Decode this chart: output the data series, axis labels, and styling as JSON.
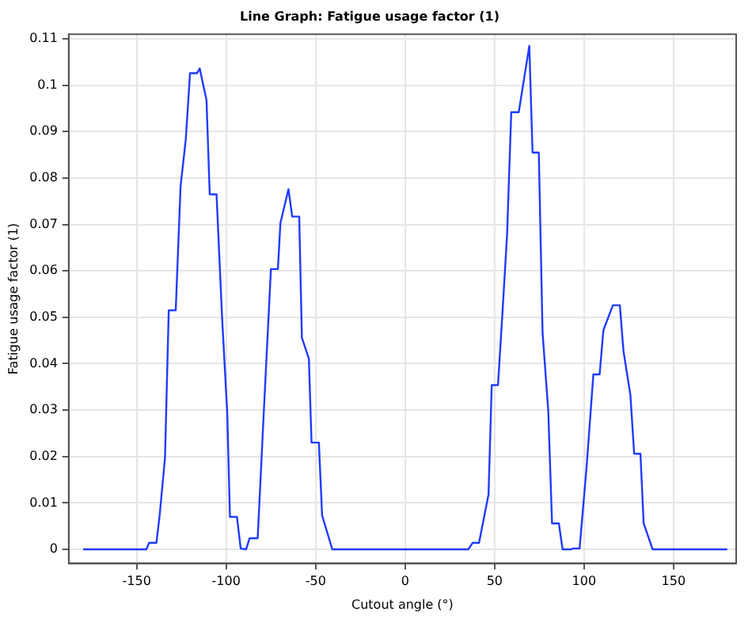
{
  "chart_data": {
    "type": "line",
    "title": "Line Graph: Fatigue usage factor (1)",
    "xlabel": "Cutout angle (°)",
    "ylabel": "Fatigue usage factor (1)",
    "x": [
      -180,
      -144.6,
      -143.1,
      -139,
      -137.2,
      -134.2,
      -132.1,
      -128.2,
      -125.5,
      -122.6,
      -120.2,
      -116.3,
      -114.8,
      -111,
      -109.2,
      -105.4,
      -102.3,
      -99.4,
      -97.9,
      -94,
      -91.9,
      -88.9,
      -86.9,
      -82.4,
      -79.1,
      -75,
      -71.1,
      -69.7,
      -65.2,
      -63.1,
      -59.2,
      -57.7,
      -53.8,
      -52.3,
      -48.2,
      -46.4,
      -40.7,
      35.3,
      37.7,
      41.3,
      46.6,
      48.4,
      51.9,
      54.6,
      57,
      59.3,
      63.5,
      69.4,
      71.2,
      74.7,
      76.8,
      80,
      82.1,
      85.9,
      88,
      92.5,
      93.9,
      97.5,
      101.4,
      105.2,
      108.7,
      110.8,
      116.1,
      120,
      122,
      125.9,
      128,
      131.5,
      133.3,
      138.3,
      180
    ],
    "series": [
      {
        "color": "#1f3cff",
        "values": [
          0,
          0,
          0.0014,
          0.0014,
          0.0073,
          0.0197,
          0.0515,
          0.0515,
          0.0782,
          0.0883,
          0.1026,
          0.1026,
          0.1036,
          0.0968,
          0.0765,
          0.0765,
          0.05,
          0.0293,
          0.007,
          0.007,
          0.0002,
          0,
          0.0024,
          0.0024,
          0.0287,
          0.0604,
          0.0604,
          0.0703,
          0.0776,
          0.0717,
          0.0717,
          0.0456,
          0.0411,
          0.023,
          0.023,
          0.0073,
          0,
          0,
          0.0014,
          0.0014,
          0.0118,
          0.0354,
          0.0354,
          0.0523,
          0.068,
          0.0942,
          0.0942,
          0.1085,
          0.0855,
          0.0855,
          0.0467,
          0.0298,
          0.0056,
          0.0056,
          0,
          0,
          0.0002,
          0.0002,
          0.0177,
          0.0377,
          0.0377,
          0.0472,
          0.0526,
          0.0526,
          0.0428,
          0.0332,
          0.0206,
          0.0206,
          0.0056,
          0,
          0
        ]
      }
    ],
    "xlim": [
      -188,
      185
    ],
    "ylim": [
      -0.003,
      0.111
    ],
    "xticks": [
      -150,
      -100,
      -50,
      0,
      50,
      100,
      150
    ],
    "yticks": [
      0,
      0.01,
      0.02,
      0.03,
      0.04,
      0.05,
      0.06,
      0.07,
      0.08,
      0.09,
      0.1,
      0.11
    ],
    "grid": true,
    "legend": false,
    "marker": "none",
    "line_style": "solid"
  }
}
